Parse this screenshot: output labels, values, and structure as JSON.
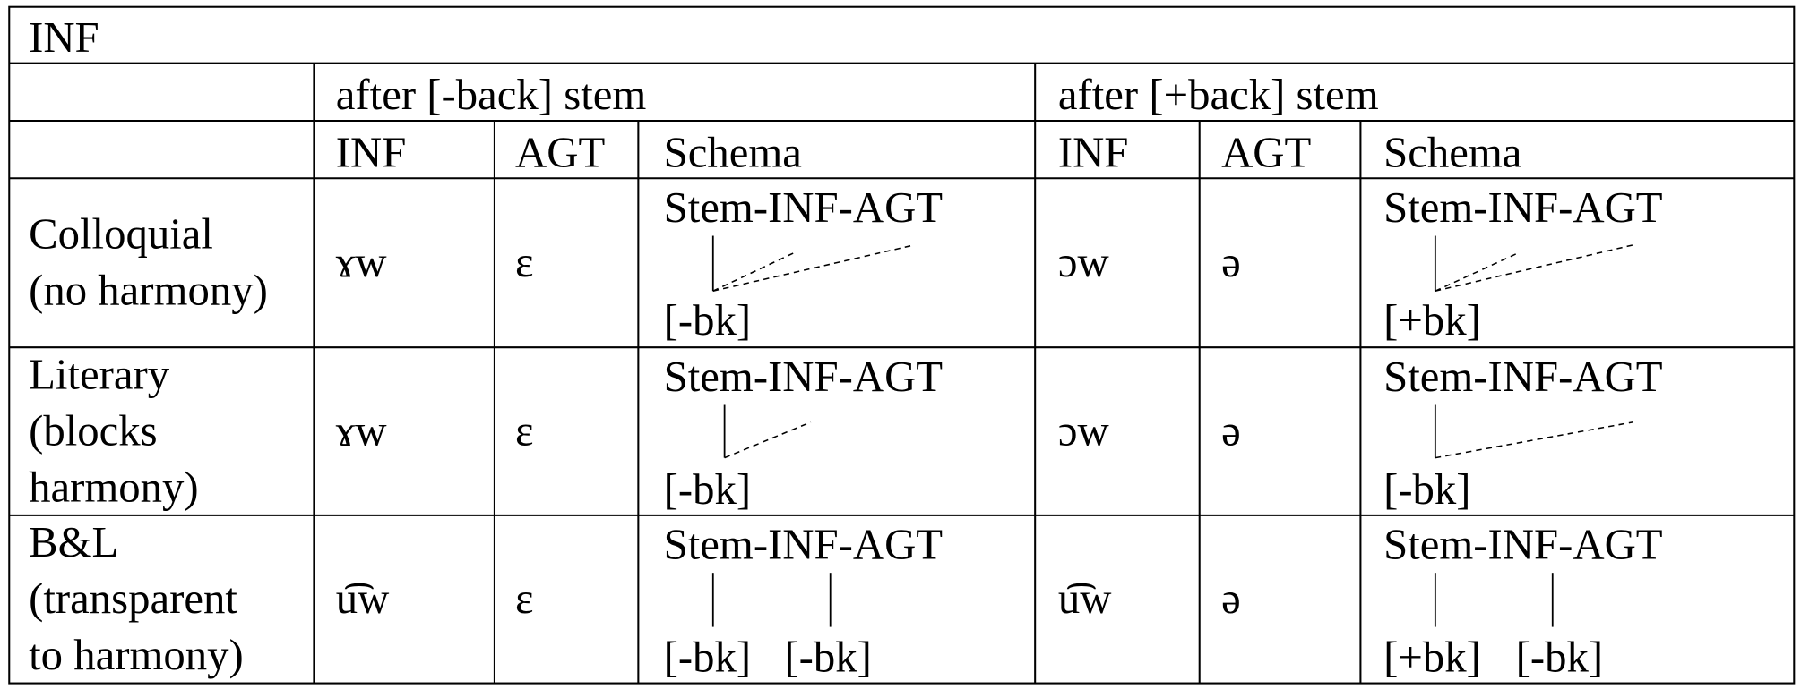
{
  "title": "INF",
  "groups": [
    "after [-back] stem",
    "after [+back] stem"
  ],
  "columns": [
    "INF",
    "AGT",
    "Schema",
    "INF",
    "AGT",
    "Schema"
  ],
  "rows": [
    {
      "label": [
        "Colloquial",
        "(no harmony)"
      ],
      "cells": [
        "ɤw",
        "ɛ",
        {
          "top": "Stem-INF-AGT",
          "features": [
            "[-bk]"
          ]
        },
        "ɔw",
        "ə",
        {
          "top": "Stem-INF-AGT",
          "features": [
            "[+bk]"
          ]
        }
      ]
    },
    {
      "label": [
        "Literary",
        "(blocks",
        "harmony)"
      ],
      "cells": [
        "ɤw",
        "ɛ",
        {
          "top": "Stem-INF-AGT",
          "features": [
            "[-bk]"
          ]
        },
        "ɔw",
        "ə",
        {
          "top": "Stem-INF-AGT",
          "features": [
            "[-bk]"
          ]
        }
      ]
    },
    {
      "label": [
        "B&L",
        "(transparent",
        "to harmony)"
      ],
      "cells": [
        "u͡w",
        "ɛ",
        {
          "top": "Stem-INF-AGT",
          "features": [
            "[-bk]",
            "[-bk]"
          ]
        },
        "u͡w",
        "ə",
        {
          "top": "Stem-INF-AGT",
          "features": [
            "[+bk]",
            "[-bk]"
          ]
        }
      ]
    }
  ]
}
